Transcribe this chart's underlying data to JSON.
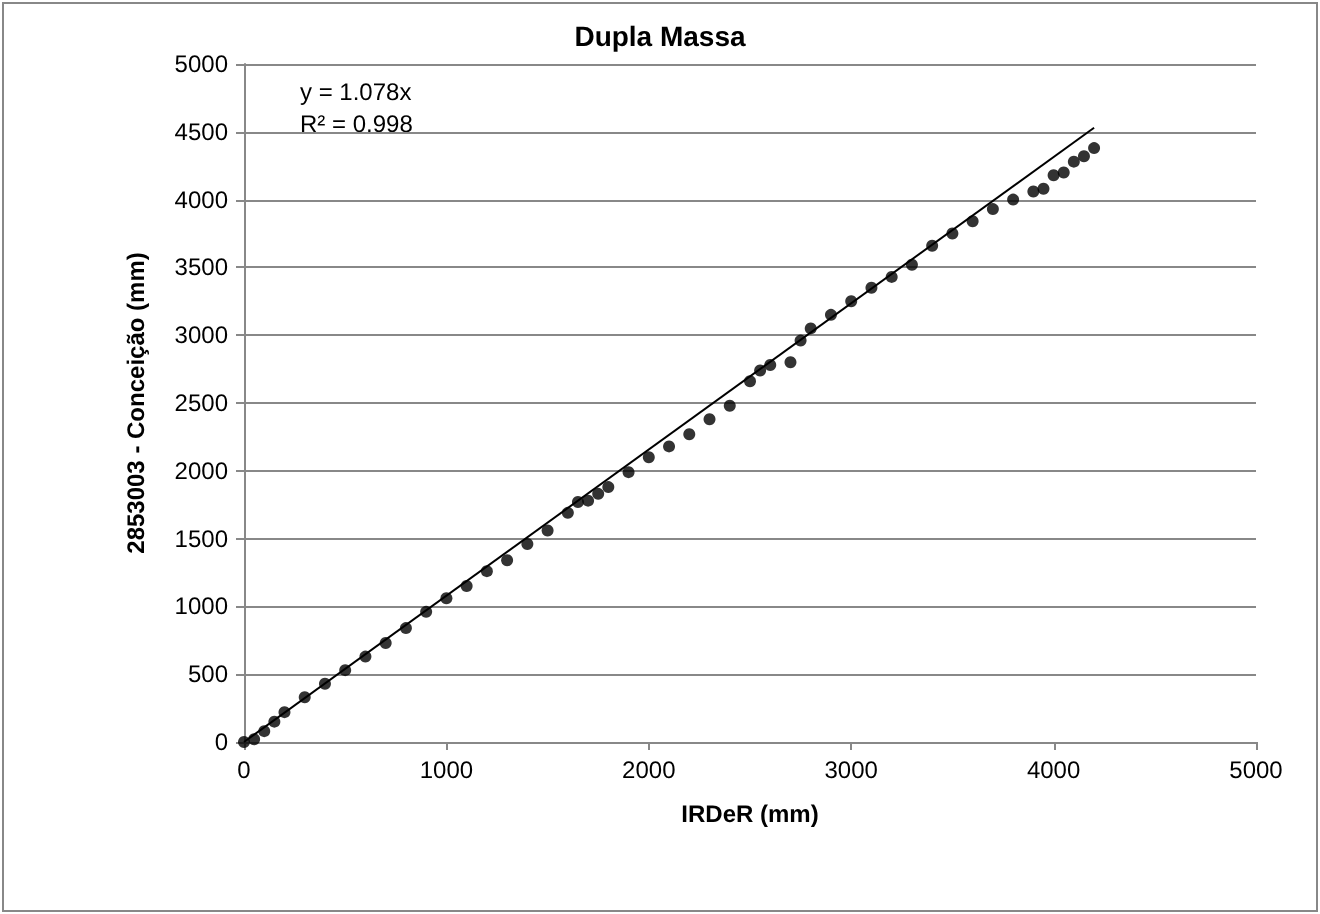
{
  "chart_data": {
    "type": "scatter",
    "title": "Dupla Massa",
    "xlabel": "IRDeR (mm)",
    "ylabel": "2853003 - Conceição (mm)",
    "annotations": [
      "y = 1.078x",
      "R² = 0.998"
    ],
    "xlim": [
      0,
      5000
    ],
    "xticks": [
      0,
      1000,
      2000,
      3000,
      4000,
      5000
    ],
    "ylim": [
      0,
      5000
    ],
    "yticks": [
      0,
      500,
      1000,
      1500,
      2000,
      2500,
      3000,
      3500,
      4000,
      4500,
      5000
    ],
    "grid": "y",
    "marker": "circle",
    "series": [
      {
        "color": "#000000",
        "x": [
          0,
          50,
          100,
          150,
          200,
          300,
          400,
          500,
          600,
          700,
          800,
          900,
          1000,
          1100,
          1200,
          1300,
          1400,
          1500,
          1600,
          1650,
          1700,
          1750,
          1800,
          1900,
          2000,
          2100,
          2200,
          2300,
          2400,
          2500,
          2550,
          2600,
          2700,
          2750,
          2800,
          2900,
          3000,
          3100,
          3200,
          3300,
          3400,
          3500,
          3600,
          3700,
          3800,
          3900,
          3950,
          4000,
          4050,
          4100,
          4150,
          4200
        ],
        "values": [
          0,
          20,
          80,
          150,
          220,
          330,
          430,
          530,
          630,
          730,
          840,
          960,
          1060,
          1150,
          1260,
          1340,
          1460,
          1560,
          1690,
          1770,
          1780,
          1830,
          1880,
          1990,
          2100,
          2180,
          2270,
          2380,
          2480,
          2660,
          2740,
          2780,
          2800,
          2960,
          3050,
          3150,
          3250,
          3350,
          3430,
          3520,
          3660,
          3750,
          3840,
          3930,
          4000,
          4060,
          4080,
          4180,
          4200,
          4280,
          4320,
          4380
        ]
      },
      {
        "type": "line",
        "color": "#000000",
        "marker": "none",
        "x": [
          0,
          4200
        ],
        "values": [
          0,
          4530
        ]
      }
    ]
  }
}
